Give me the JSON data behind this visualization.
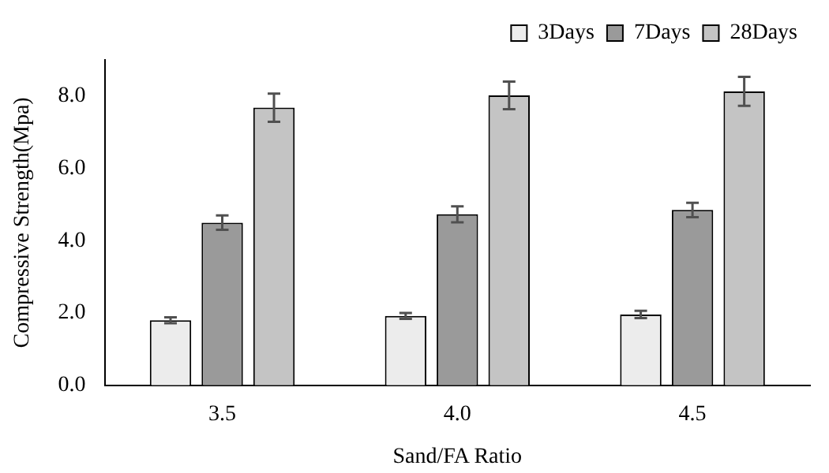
{
  "chart_data": {
    "type": "bar",
    "xlabel": "Sand/FA Ratio",
    "ylabel": "Compressive Strength(Mpa)",
    "categories": [
      "3.5",
      "4.0",
      "4.5"
    ],
    "series": [
      {
        "name": "3Days",
        "color": "#ececec",
        "values": [
          1.8,
          1.92,
          1.96
        ],
        "errors": [
          0.08,
          0.08,
          0.1
        ]
      },
      {
        "name": "7Days",
        "color": "#9a9a9a",
        "values": [
          4.5,
          4.73,
          4.85
        ],
        "errors": [
          0.2,
          0.22,
          0.2
        ]
      },
      {
        "name": "28Days",
        "color": "#c4c4c4",
        "values": [
          7.68,
          8.02,
          8.13
        ],
        "errors": [
          0.39,
          0.38,
          0.4
        ]
      }
    ],
    "ylim": [
      0,
      9
    ],
    "yticks": [
      {
        "value": 0,
        "label": "0.0"
      },
      {
        "value": 2,
        "label": "2.0"
      },
      {
        "value": 4,
        "label": "4.0"
      },
      {
        "value": 6,
        "label": "6.0"
      },
      {
        "value": 8,
        "label": "8.0"
      }
    ],
    "grid": false,
    "legend": "top right"
  }
}
